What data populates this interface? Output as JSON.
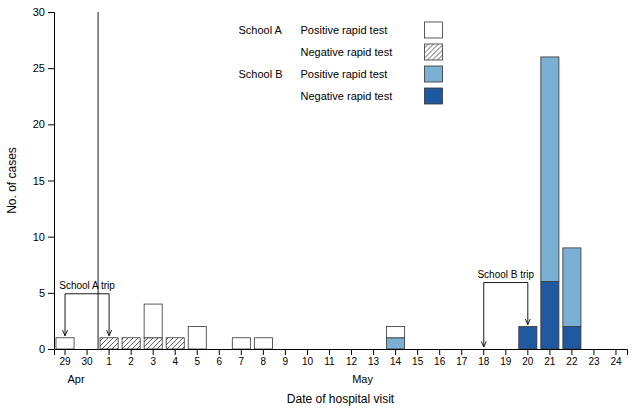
{
  "chart_data": {
    "type": "bar",
    "stacked": true,
    "xlabel": "Date of hospital visit",
    "ylabel": "No. of cases",
    "categories": [
      "29",
      "30",
      "1",
      "2",
      "3",
      "4",
      "5",
      "6",
      "7",
      "8",
      "9",
      "10",
      "11",
      "12",
      "13",
      "14",
      "15",
      "16",
      "17",
      "18",
      "19",
      "20",
      "21",
      "22",
      "23",
      "24"
    ],
    "series": [
      {
        "name": "Positive rapid test",
        "group": "School A",
        "color": "#ffffff",
        "values": [
          1,
          0,
          0,
          0,
          3,
          0,
          2,
          0,
          1,
          1,
          0,
          0,
          0,
          0,
          0,
          1,
          0,
          0,
          0,
          0,
          0,
          0,
          0,
          0,
          0,
          0
        ]
      },
      {
        "name": "Negative rapid test",
        "group": "School A",
        "color": "#ffffff",
        "values": [
          0,
          0,
          1,
          1,
          1,
          1,
          0,
          0,
          0,
          0,
          0,
          0,
          0,
          0,
          0,
          0,
          0,
          0,
          0,
          0,
          0,
          0,
          0,
          0,
          0,
          0
        ]
      },
      {
        "name": "Positive rapid test",
        "group": "School B",
        "color": "#7bafd4",
        "values": [
          0,
          0,
          0,
          0,
          0,
          0,
          0,
          0,
          0,
          0,
          0,
          0,
          0,
          0,
          0,
          1,
          0,
          0,
          0,
          0,
          0,
          0,
          20,
          7,
          0,
          0
        ]
      },
      {
        "name": "Negative rapid test",
        "group": "School B",
        "color": "#1f5aa0",
        "values": [
          0,
          0,
          0,
          0,
          0,
          0,
          0,
          0,
          0,
          0,
          0,
          0,
          0,
          0,
          0,
          0,
          0,
          0,
          0,
          0,
          0,
          2,
          6,
          2,
          0,
          0
        ]
      }
    ],
    "ylim": [
      0,
      30
    ],
    "yticks": [
      0,
      5,
      10,
      15,
      20,
      25,
      30
    ],
    "legend": "upper center",
    "annotations": [
      {
        "text": "School A trip",
        "from": "29",
        "to": "1"
      },
      {
        "text": "School B trip",
        "from": "18",
        "to": "20"
      }
    ],
    "month_labels": [
      {
        "text": "Apr",
        "from": "29",
        "to": "30"
      },
      {
        "text": "May",
        "from": "1",
        "to": "24"
      }
    ]
  }
}
